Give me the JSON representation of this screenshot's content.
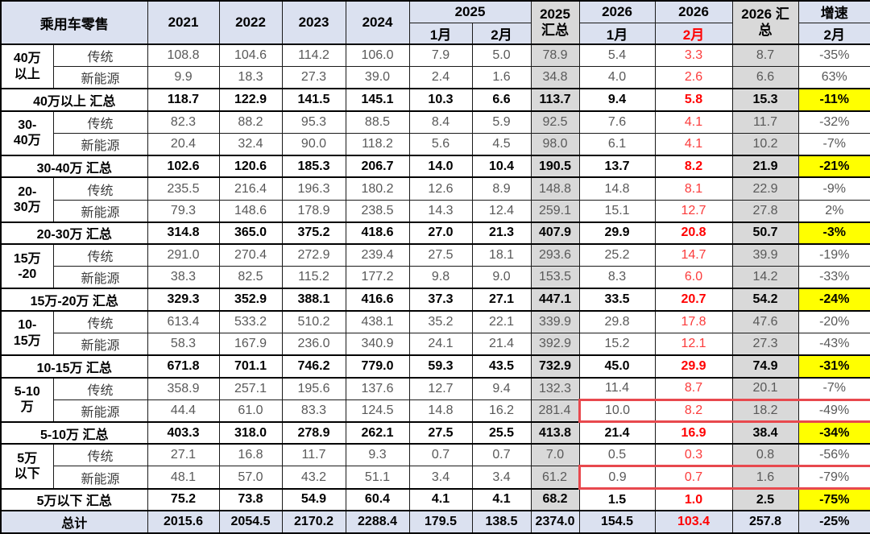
{
  "colors": {
    "header_bg": "#dbe1f0",
    "summary_col_bg": "#d9d9d9",
    "growth_highlight_bg": "#ffff00",
    "red_text": "#ff0000",
    "highlight_box_border": "#e8494e"
  },
  "header": {
    "title": "乘用车零售",
    "years": [
      "2021",
      "2022",
      "2023",
      "2024"
    ],
    "grp2025": "2025",
    "m2025": [
      "1月",
      "2月"
    ],
    "sum2025": [
      "2025",
      "汇总"
    ],
    "y2026_jan": "2026",
    "y2026_feb": "2026",
    "m2026_jan": "1月",
    "m2026_feb": "2月",
    "sum2026": [
      "2026 汇",
      "总"
    ],
    "growth": [
      "增速",
      "2月"
    ]
  },
  "chart_data": {
    "type": "table",
    "title": "乘用车零售",
    "columns": [
      "2021",
      "2022",
      "2023",
      "2024",
      "2025-1月",
      "2025-2月",
      "2025汇总",
      "2026-1月",
      "2026-2月",
      "2026汇总",
      "增速2月"
    ],
    "segments": [
      {
        "label_lines": [
          "40万",
          "以上"
        ],
        "rows": [
          {
            "sub": "传统",
            "box": false,
            "vals": [
              "108.8",
              "104.6",
              "114.2",
              "106.0",
              "7.9",
              "5.0",
              "78.9",
              "5.4",
              "3.3",
              "8.7",
              "-35%"
            ]
          },
          {
            "sub": "新能源",
            "box": false,
            "vals": [
              "9.9",
              "18.3",
              "27.3",
              "39.0",
              "2.4",
              "1.6",
              "34.8",
              "4.0",
              "2.6",
              "6.6",
              "63%"
            ]
          }
        ],
        "summary": {
          "label": "40万以上 汇总",
          "vals": [
            "118.7",
            "122.9",
            "141.5",
            "145.1",
            "10.3",
            "6.6",
            "113.7",
            "9.4",
            "5.8",
            "15.3",
            "-11%"
          ]
        }
      },
      {
        "label_lines": [
          "30-",
          "40万"
        ],
        "rows": [
          {
            "sub": "传统",
            "box": false,
            "vals": [
              "82.3",
              "88.2",
              "95.3",
              "88.5",
              "8.4",
              "5.9",
              "92.5",
              "7.6",
              "4.1",
              "11.7",
              "-32%"
            ]
          },
          {
            "sub": "新能源",
            "box": false,
            "vals": [
              "20.4",
              "32.4",
              "90.0",
              "118.2",
              "5.6",
              "4.5",
              "98.0",
              "6.1",
              "4.1",
              "10.2",
              "-7%"
            ]
          }
        ],
        "summary": {
          "label": "30-40万 汇总",
          "vals": [
            "102.6",
            "120.6",
            "185.3",
            "206.7",
            "14.0",
            "10.4",
            "190.5",
            "13.7",
            "8.2",
            "21.9",
            "-21%"
          ]
        }
      },
      {
        "label_lines": [
          "20-",
          "30万"
        ],
        "rows": [
          {
            "sub": "传统",
            "box": false,
            "vals": [
              "235.5",
              "216.4",
              "196.3",
              "180.2",
              "12.6",
              "8.9",
              "148.8",
              "14.8",
              "8.1",
              "22.9",
              "-9%"
            ]
          },
          {
            "sub": "新能源",
            "box": false,
            "vals": [
              "79.3",
              "148.6",
              "178.9",
              "238.5",
              "14.3",
              "12.4",
              "259.1",
              "15.1",
              "12.7",
              "27.8",
              "2%"
            ]
          }
        ],
        "summary": {
          "label": "20-30万 汇总",
          "vals": [
            "314.8",
            "365.0",
            "375.2",
            "418.6",
            "27.0",
            "21.3",
            "407.9",
            "29.9",
            "20.8",
            "50.7",
            "-3%"
          ]
        }
      },
      {
        "label_lines": [
          "15万",
          "-20"
        ],
        "rows": [
          {
            "sub": "传统",
            "box": false,
            "vals": [
              "291.0",
              "270.4",
              "272.9",
              "239.4",
              "27.5",
              "18.1",
              "293.6",
              "25.2",
              "14.7",
              "39.9",
              "-19%"
            ]
          },
          {
            "sub": "新能源",
            "box": false,
            "vals": [
              "38.3",
              "82.5",
              "115.2",
              "177.2",
              "9.8",
              "9.0",
              "153.5",
              "8.3",
              "6.0",
              "14.2",
              "-33%"
            ]
          }
        ],
        "summary": {
          "label": "15万-20万 汇总",
          "vals": [
            "329.3",
            "352.9",
            "388.1",
            "416.6",
            "37.3",
            "27.1",
            "447.1",
            "33.5",
            "20.7",
            "54.2",
            "-24%"
          ]
        }
      },
      {
        "label_lines": [
          "10-",
          "15万"
        ],
        "rows": [
          {
            "sub": "传统",
            "box": false,
            "vals": [
              "613.4",
              "533.2",
              "510.2",
              "438.1",
              "35.2",
              "22.1",
              "339.9",
              "29.8",
              "17.8",
              "47.6",
              "-20%"
            ]
          },
          {
            "sub": "新能源",
            "box": false,
            "vals": [
              "58.3",
              "167.9",
              "236.0",
              "340.9",
              "24.1",
              "21.4",
              "392.9",
              "15.2",
              "12.1",
              "27.3",
              "-43%"
            ]
          }
        ],
        "summary": {
          "label": "10-15万 汇总",
          "vals": [
            "671.8",
            "701.1",
            "746.2",
            "779.0",
            "59.3",
            "43.5",
            "732.9",
            "45.0",
            "29.9",
            "74.9",
            "-31%"
          ]
        }
      },
      {
        "label_lines": [
          "5-10",
          "万"
        ],
        "rows": [
          {
            "sub": "传统",
            "box": false,
            "vals": [
              "358.9",
              "257.1",
              "195.6",
              "137.6",
              "12.7",
              "9.4",
              "132.3",
              "11.4",
              "8.7",
              "20.1",
              "-7%"
            ]
          },
          {
            "sub": "新能源",
            "box": true,
            "vals": [
              "44.4",
              "61.0",
              "83.3",
              "124.5",
              "14.8",
              "16.2",
              "281.4",
              "10.0",
              "8.2",
              "18.2",
              "-49%"
            ]
          }
        ],
        "summary": {
          "label": "5-10万 汇总",
          "vals": [
            "403.3",
            "318.0",
            "278.9",
            "262.1",
            "27.5",
            "25.5",
            "413.8",
            "21.4",
            "16.9",
            "38.4",
            "-34%"
          ]
        }
      },
      {
        "label_lines": [
          "5万",
          "以下"
        ],
        "rows": [
          {
            "sub": "传统",
            "box": false,
            "vals": [
              "27.1",
              "16.8",
              "11.7",
              "9.3",
              "0.7",
              "0.7",
              "7.0",
              "0.5",
              "0.3",
              "0.8",
              "-56%"
            ]
          },
          {
            "sub": "新能源",
            "box": true,
            "vals": [
              "48.1",
              "57.0",
              "43.2",
              "51.1",
              "3.4",
              "3.4",
              "61.2",
              "0.9",
              "0.7",
              "1.6",
              "-79%"
            ]
          }
        ],
        "summary": {
          "label": "5万以下 汇总",
          "vals": [
            "75.2",
            "73.8",
            "54.9",
            "60.4",
            "4.1",
            "4.1",
            "68.2",
            "1.5",
            "1.0",
            "2.5",
            "-75%"
          ]
        }
      }
    ],
    "total": {
      "label": "总计",
      "vals": [
        "2015.6",
        "2054.5",
        "2170.2",
        "2288.4",
        "179.5",
        "138.5",
        "2374.0",
        "154.5",
        "103.4",
        "257.8",
        "-25%"
      ]
    }
  }
}
